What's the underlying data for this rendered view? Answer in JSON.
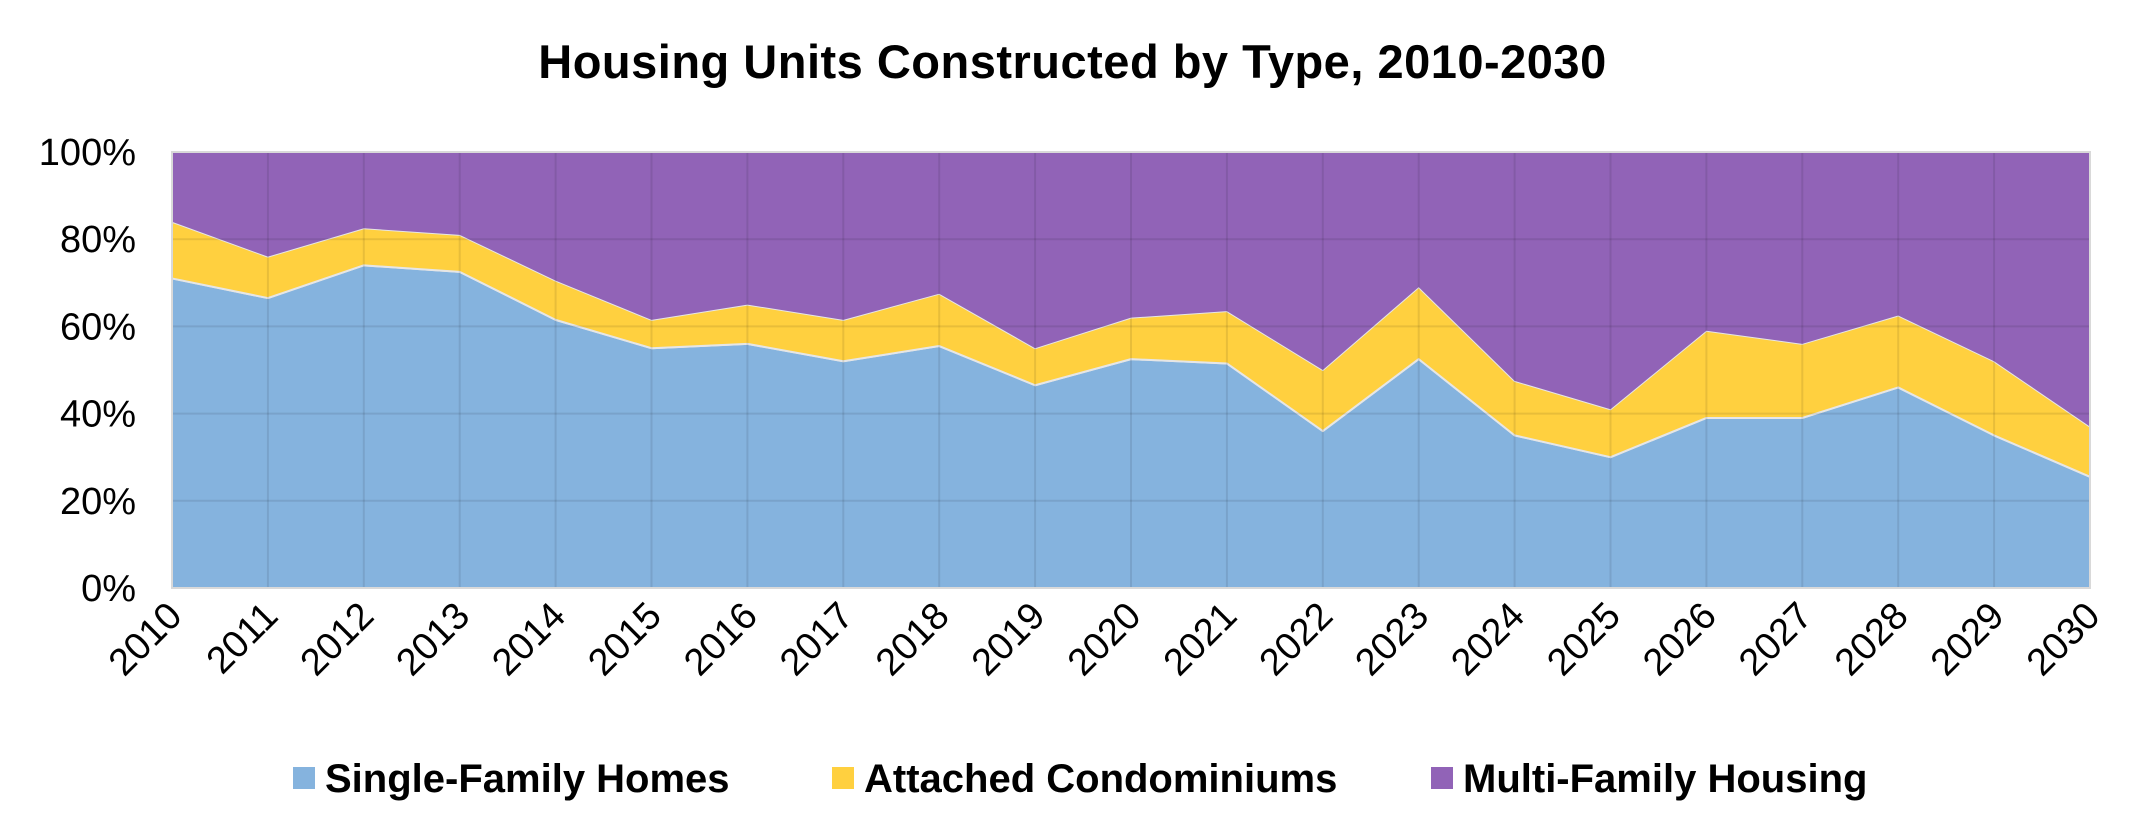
{
  "chart_data": {
    "type": "area",
    "stacked": true,
    "percent": true,
    "title": "Housing Units Constructed by Type, 2010-2030",
    "xlabel": "",
    "ylabel": "",
    "categories": [
      "2010",
      "2011",
      "2012",
      "2013",
      "2014",
      "2015",
      "2016",
      "2017",
      "2018",
      "2019",
      "2020",
      "2021",
      "2022",
      "2023",
      "2024",
      "2025",
      "2026",
      "2027",
      "2028",
      "2029",
      "2030"
    ],
    "series": [
      {
        "name": "Single-Family Homes",
        "color": "#85B3DE",
        "values": [
          71,
          66.5,
          74,
          72.5,
          61.5,
          55,
          56,
          52,
          55.5,
          46.5,
          52.5,
          51.5,
          36,
          52.5,
          35,
          30,
          39,
          39,
          46,
          35,
          25.5
        ]
      },
      {
        "name": "Attached Condominiums",
        "color": "#FFD03F",
        "values": [
          13,
          9.5,
          8.5,
          8.5,
          9,
          6.5,
          9,
          9.5,
          12,
          8.5,
          9.5,
          12,
          14,
          16.5,
          12.5,
          11,
          20,
          17,
          16.5,
          17,
          11.5
        ]
      },
      {
        "name": "Multi-Family Housing",
        "color": "#9163B7",
        "values": [
          16,
          24,
          17.5,
          19,
          29.5,
          38.5,
          35,
          38.5,
          32.5,
          45,
          38,
          36.5,
          50,
          31,
          52.5,
          59,
          41,
          44,
          37.5,
          48,
          63
        ]
      }
    ],
    "ylim": [
      0,
      100
    ],
    "yticks": [
      "0%",
      "20%",
      "40%",
      "60%",
      "80%",
      "100%"
    ],
    "grid": true,
    "legend": "bottom"
  }
}
